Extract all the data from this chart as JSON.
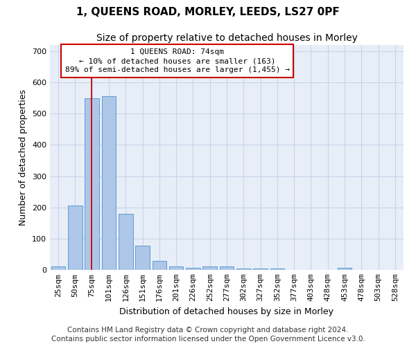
{
  "title": "1, QUEENS ROAD, MORLEY, LEEDS, LS27 0PF",
  "subtitle": "Size of property relative to detached houses in Morley",
  "xlabel": "Distribution of detached houses by size in Morley",
  "ylabel": "Number of detached properties",
  "categories": [
    "25sqm",
    "50sqm",
    "75sqm",
    "101sqm",
    "126sqm",
    "151sqm",
    "176sqm",
    "201sqm",
    "226sqm",
    "252sqm",
    "277sqm",
    "302sqm",
    "327sqm",
    "352sqm",
    "377sqm",
    "403sqm",
    "428sqm",
    "453sqm",
    "478sqm",
    "503sqm",
    "528sqm"
  ],
  "values": [
    10,
    205,
    550,
    555,
    180,
    77,
    28,
    10,
    7,
    10,
    10,
    5,
    5,
    5,
    0,
    0,
    0,
    7,
    0,
    0,
    0
  ],
  "bar_color": "#aec6e8",
  "bar_edge_color": "#5a9fd4",
  "grid_color": "#c8d4e8",
  "background_color": "#e8eef8",
  "property_line_color": "#cc0000",
  "annotation_line1": "1 QUEENS ROAD: 74sqm",
  "annotation_line2": "← 10% of detached houses are smaller (163)",
  "annotation_line3": "89% of semi-detached houses are larger (1,455) →",
  "annotation_box_color": "#cc0000",
  "ylim": [
    0,
    720
  ],
  "yticks": [
    0,
    100,
    200,
    300,
    400,
    500,
    600,
    700
  ],
  "footer": "Contains HM Land Registry data © Crown copyright and database right 2024.\nContains public sector information licensed under the Open Government Licence v3.0.",
  "title_fontsize": 11,
  "subtitle_fontsize": 10,
  "xlabel_fontsize": 9,
  "ylabel_fontsize": 9,
  "tick_fontsize": 8,
  "annotation_fontsize": 8,
  "footer_fontsize": 7.5
}
